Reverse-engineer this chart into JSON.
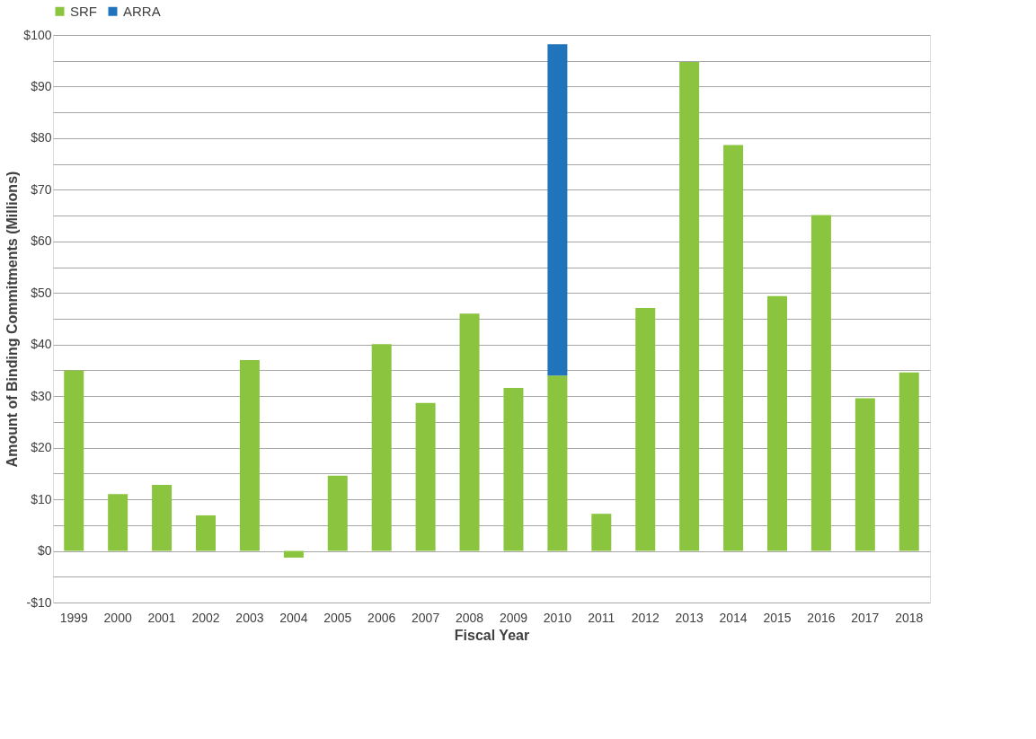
{
  "chart_data": {
    "type": "bar",
    "stacked": true,
    "xlabel": "Fiscal Year",
    "ylabel": "Amount of Binding Commitments (Millions)",
    "categories": [
      "1999",
      "2000",
      "2001",
      "2002",
      "2003",
      "2004",
      "2005",
      "2006",
      "2007",
      "2008",
      "2009",
      "2010",
      "2011",
      "2012",
      "2013",
      "2014",
      "2015",
      "2016",
      "2017",
      "2018"
    ],
    "series": [
      {
        "name": "SRF",
        "color": "#8bc53f",
        "values": [
          35,
          11,
          12.8,
          6.9,
          37,
          -1.3,
          14.6,
          40.1,
          28.7,
          46,
          31.6,
          34,
          7.2,
          47.1,
          94.8,
          78.7,
          49.4,
          65.1,
          29.6,
          34.6
        ]
      },
      {
        "name": "ARRA",
        "color": "#1f74bc",
        "values": [
          null,
          null,
          null,
          null,
          null,
          null,
          null,
          null,
          null,
          null,
          null,
          64.2,
          null,
          null,
          null,
          null,
          null,
          null,
          null,
          null
        ]
      }
    ],
    "ylim": [
      -10,
      100
    ],
    "yticks": [
      {
        "value": -10,
        "label": "-$10"
      },
      {
        "value": -5,
        "label": null
      },
      {
        "value": 0,
        "label": "$0"
      },
      {
        "value": 5,
        "label": null
      },
      {
        "value": 10,
        "label": "$10"
      },
      {
        "value": 15,
        "label": null
      },
      {
        "value": 20,
        "label": "$20"
      },
      {
        "value": 25,
        "label": null
      },
      {
        "value": 30,
        "label": "$30"
      },
      {
        "value": 35,
        "label": null
      },
      {
        "value": 40,
        "label": "$40"
      },
      {
        "value": 45,
        "label": null
      },
      {
        "value": 50,
        "label": "$50"
      },
      {
        "value": 55,
        "label": null
      },
      {
        "value": 60,
        "label": "$60"
      },
      {
        "value": 65,
        "label": null
      },
      {
        "value": 70,
        "label": "$70"
      },
      {
        "value": 75,
        "label": null
      },
      {
        "value": 80,
        "label": "$80"
      },
      {
        "value": 85,
        "label": null
      },
      {
        "value": 90,
        "label": "$90"
      },
      {
        "value": 95,
        "label": null
      },
      {
        "value": 100,
        "label": "$100"
      }
    ],
    "grid": "y",
    "legend": "top"
  }
}
